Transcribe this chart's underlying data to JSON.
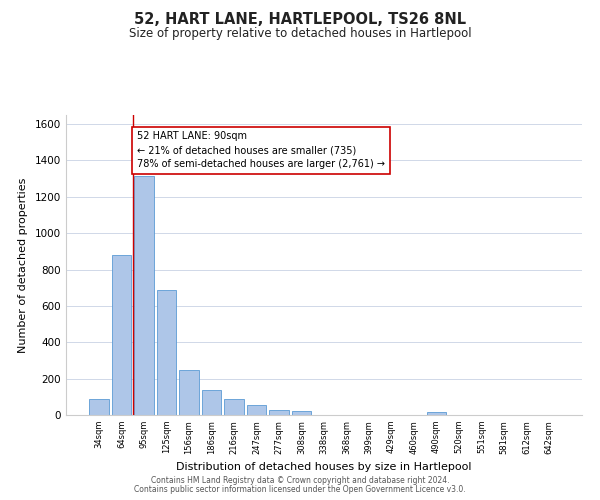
{
  "title": "52, HART LANE, HARTLEPOOL, TS26 8NL",
  "subtitle": "Size of property relative to detached houses in Hartlepool",
  "xlabel": "Distribution of detached houses by size in Hartlepool",
  "ylabel": "Number of detached properties",
  "bar_labels": [
    "34sqm",
    "64sqm",
    "95sqm",
    "125sqm",
    "156sqm",
    "186sqm",
    "216sqm",
    "247sqm",
    "277sqm",
    "308sqm",
    "338sqm",
    "368sqm",
    "399sqm",
    "429sqm",
    "460sqm",
    "490sqm",
    "520sqm",
    "551sqm",
    "581sqm",
    "612sqm",
    "642sqm"
  ],
  "bar_values": [
    87,
    880,
    1315,
    685,
    250,
    140,
    88,
    55,
    30,
    22,
    0,
    0,
    0,
    0,
    0,
    18,
    0,
    0,
    0,
    0,
    0
  ],
  "bar_color": "#aec6e8",
  "bar_edge_color": "#5b9bd5",
  "highlight_bar_idx": 2,
  "highlight_color": "#cc0000",
  "annotation_line1": "52 HART LANE: 90sqm",
  "annotation_line2": "← 21% of detached houses are smaller (735)",
  "annotation_line3": "78% of semi-detached houses are larger (2,761) →",
  "annotation_box_edge": "#cc0000",
  "ylim": [
    0,
    1650
  ],
  "yticks": [
    0,
    200,
    400,
    600,
    800,
    1000,
    1200,
    1400,
    1600
  ],
  "footer_line1": "Contains HM Land Registry data © Crown copyright and database right 2024.",
  "footer_line2": "Contains public sector information licensed under the Open Government Licence v3.0.",
  "bg_color": "#ffffff",
  "grid_color": "#d0d8e8"
}
